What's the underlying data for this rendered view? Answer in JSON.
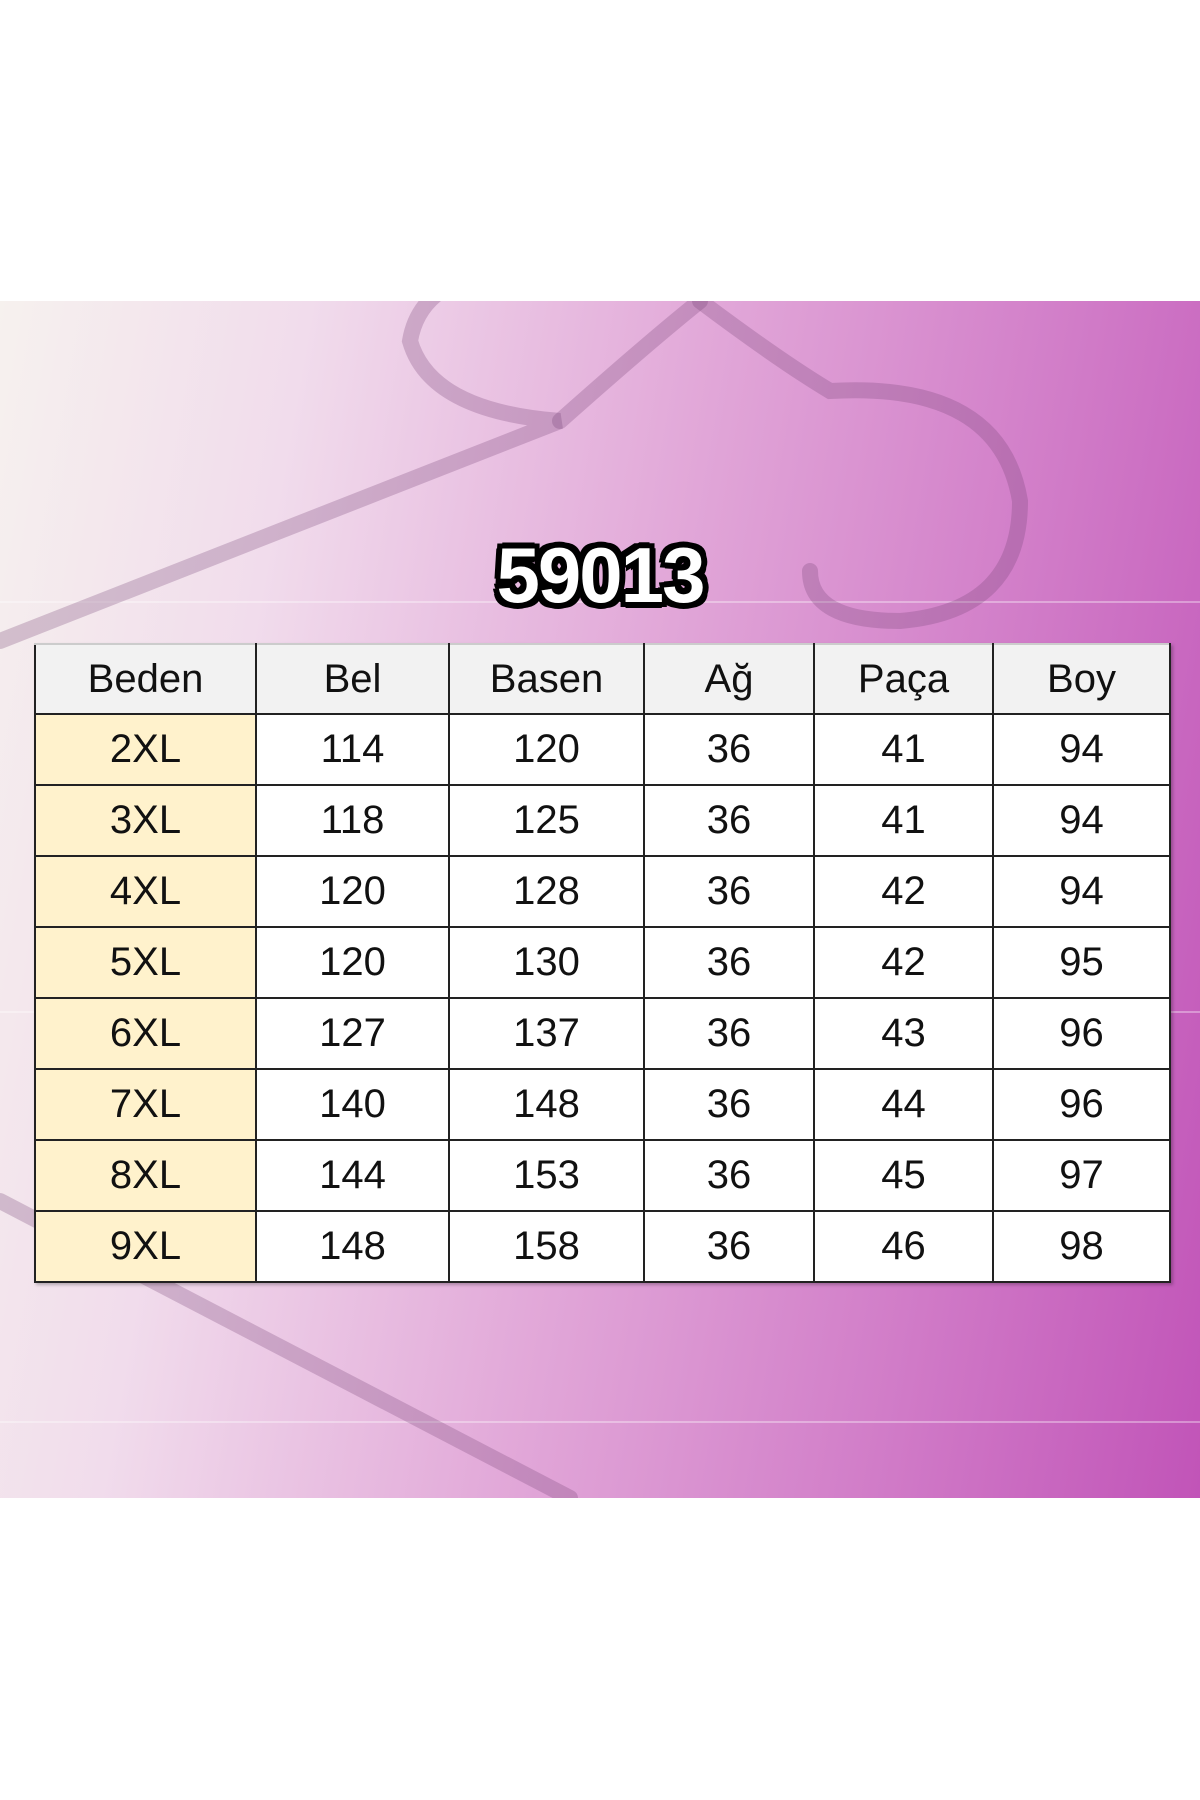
{
  "title": "59013",
  "table": {
    "headers": [
      "Beden",
      "Bel",
      "Basen",
      "Ağ",
      "Paça",
      "Boy"
    ],
    "rows": [
      [
        "2XL",
        "114",
        "120",
        "36",
        "41",
        "94"
      ],
      [
        "3XL",
        "118",
        "125",
        "36",
        "41",
        "94"
      ],
      [
        "4XL",
        "120",
        "128",
        "36",
        "42",
        "94"
      ],
      [
        "5XL",
        "120",
        "130",
        "36",
        "42",
        "95"
      ],
      [
        "6XL",
        "127",
        "137",
        "36",
        "43",
        "96"
      ],
      [
        "7XL",
        "140",
        "148",
        "36",
        "44",
        "96"
      ],
      [
        "8XL",
        "144",
        "153",
        "36",
        "45",
        "97"
      ],
      [
        "9XL",
        "148",
        "158",
        "36",
        "46",
        "98"
      ]
    ]
  },
  "colors": {
    "size_cell": "#fff2cc",
    "header_cell": "#f2f2f2",
    "background_accent": "#c154b8"
  }
}
